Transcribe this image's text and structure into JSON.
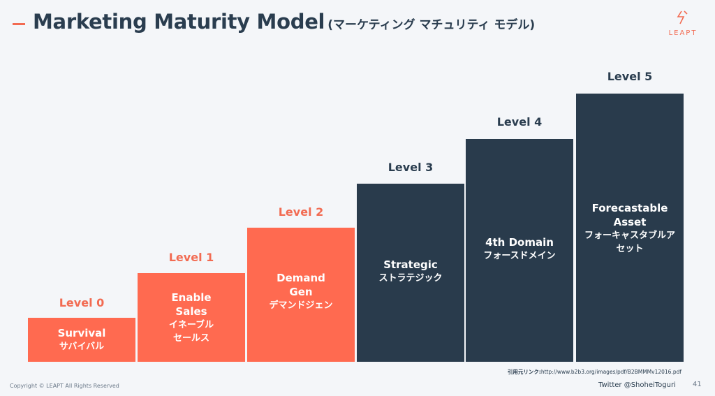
{
  "header": {
    "title": "Marketing Maturity Model",
    "subtitle": "(マーケティング マチュリティ モデル)",
    "accent_color": "#f26b52"
  },
  "logo": {
    "text": "LEAPT",
    "icon": "leapt-logo-icon"
  },
  "levels": [
    {
      "label": "Level 0",
      "en": "Survival",
      "ja": "サバイバル",
      "color": "#ff6a50"
    },
    {
      "label": "Level 1",
      "en": "Enable\nSales",
      "ja": "イネーブル\nセールス",
      "color": "#ff6a50"
    },
    {
      "label": "Level 2",
      "en": "Demand\nGen",
      "ja": "デマンドジェン",
      "color": "#ff6a50"
    },
    {
      "label": "Level 3",
      "en": "Strategic",
      "ja": "ストラテジック",
      "color": "#293b4c"
    },
    {
      "label": "Level 4",
      "en": "4th Domain",
      "ja": "フォースドメイン",
      "color": "#293b4c"
    },
    {
      "label": "Level 5",
      "en": "Forecastable\nAsset",
      "ja": "フォーキャスタブルア\nセット",
      "color": "#293b4c"
    }
  ],
  "source": {
    "prefix": "引用元リンク:",
    "url": "http://www.b2b3.org/images/pdf/B2BMMMv12016.pdf"
  },
  "footer": {
    "copyright": "Copyright © LEAPT All Rights Reserved",
    "twitter": "Twitter @ShoheiToguri",
    "page_number": "41"
  }
}
